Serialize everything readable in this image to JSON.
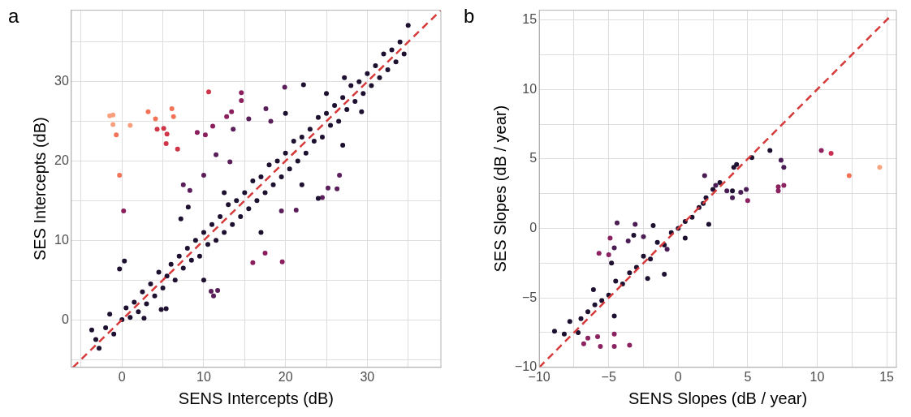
{
  "chart_data": [
    {
      "type": "scatter",
      "title": "a",
      "xlabel": "SENS Intercepts (dB)",
      "ylabel": "SES Intercepts (dB)",
      "xlim": [
        -6.2,
        39
      ],
      "ylim": [
        -6,
        39
      ],
      "xticks": [
        {
          "value": -5,
          "label": null
        },
        0,
        {
          "value": 5,
          "label": null
        },
        10,
        {
          "value": 15,
          "label": null
        },
        20,
        {
          "value": 25,
          "label": null
        },
        30,
        {
          "value": 35,
          "label": null
        }
      ],
      "yticks": [
        {
          "value": -5,
          "label": null
        },
        0,
        {
          "value": 5,
          "label": null
        },
        10,
        {
          "value": 15,
          "label": null
        },
        20,
        {
          "value": 25,
          "label": null
        },
        30,
        {
          "value": 35,
          "label": null
        }
      ],
      "grid": true,
      "marker": "circle",
      "series": [
        {
          "type": "line",
          "line_style": "dashed",
          "marker": "none",
          "color": "#d63a3a",
          "x": [
            -6,
            39
          ],
          "values": [
            -6,
            39
          ]
        },
        {
          "color": "#1e1030",
          "x": [
            -3.7,
            -3.2,
            -2.8,
            -2,
            -1.5,
            -1,
            0,
            0.5,
            1,
            1.5,
            2,
            2.5,
            3,
            3.5,
            4,
            4.5,
            5,
            5.5,
            6,
            6.5,
            7,
            7.5,
            8,
            8.5,
            9,
            9.5,
            10,
            10.5,
            11,
            11.5,
            12,
            12.5,
            13,
            13.5,
            14,
            14.5,
            15,
            15.5,
            16,
            16.5,
            17,
            17.5,
            18,
            18.5,
            19,
            19.5,
            20,
            20.5,
            21,
            21.5,
            22,
            22.5,
            23,
            23.5,
            24,
            24.5,
            25,
            25.5,
            26,
            26.5,
            27,
            27.5,
            28,
            28.5,
            29,
            29.5,
            30,
            30.5,
            31,
            31.5,
            32,
            32.5,
            33,
            33.5,
            34,
            34.5,
            35,
            -0.3,
            0.3,
            4.8,
            5.4,
            2.7,
            25,
            27.2,
            22.2,
            29.3,
            27,
            22,
            10,
            7.2,
            8.1,
            17,
            20,
            12.5,
            24
          ],
          "values": [
            -1.3,
            -2.5,
            -3.6,
            -1,
            0.7,
            -1.8,
            0,
            1.5,
            0.3,
            2.2,
            1,
            3.5,
            2,
            4.5,
            3,
            6,
            4,
            5.5,
            7,
            5,
            8,
            6.5,
            9,
            7.5,
            10,
            8,
            11,
            9.5,
            12,
            10,
            13,
            11,
            14.5,
            12,
            15,
            13,
            16,
            14,
            17.5,
            15,
            18,
            16,
            19.5,
            17,
            20,
            18,
            21,
            19,
            22.5,
            20,
            23,
            21,
            24,
            22.5,
            25.5,
            23,
            26,
            24.5,
            27,
            25,
            28,
            26.5,
            29.5,
            27.5,
            30,
            28.5,
            31,
            29.5,
            32,
            30.5,
            33.5,
            31.5,
            34,
            32.5,
            35,
            33.5,
            37.1,
            6.4,
            7.4,
            1.3,
            1.4,
            0.2,
            28.5,
            30.5,
            29.6,
            26.2,
            22,
            17,
            5,
            12.7,
            14.2,
            11,
            26,
            16,
            15.3
          ]
        },
        {
          "color": "#5a1f5a",
          "x": [
            11.2,
            10.9,
            11.7,
            19.5,
            21.3,
            24.5,
            26.3,
            26.6,
            25.2,
            18.2,
            15.5,
            11.5,
            13.6,
            13.2,
            8.3,
            7.5,
            10,
            17.6,
            19.9
          ],
          "values": [
            3,
            3.6,
            3.7,
            13.7,
            13.8,
            15.4,
            16.5,
            18.2,
            16.6,
            25,
            25.3,
            20.8,
            24,
            19.9,
            16.3,
            17,
            18.2,
            26.6,
            29.3
          ]
        },
        {
          "color": "#8b1f5e",
          "x": [
            16,
            17.5,
            19.6,
            14.6,
            14.6,
            13.4,
            12.8,
            9.2,
            10.2,
            11.1,
            0.2
          ],
          "values": [
            7.2,
            8.4,
            7.3,
            27.6,
            28.6,
            26.2,
            25.6,
            23.6,
            23.3,
            24.4,
            13.7
          ]
        },
        {
          "color": "#d0364a",
          "x": [
            10.6,
            5.1,
            4.3,
            5.5,
            5.4,
            6.8
          ],
          "values": [
            28.7,
            24.1,
            24,
            23.4,
            22.2,
            21.5
          ]
        },
        {
          "color": "#f27358",
          "x": [
            3.2,
            4.1,
            -0.7,
            6.3,
            6.1,
            -0.3
          ],
          "values": [
            26.2,
            25.3,
            23.3,
            25.6,
            26.6,
            18.2
          ]
        },
        {
          "color": "#f8a07d",
          "x": [
            -1.5,
            -1.1,
            -1.1,
            1
          ],
          "values": [
            25.7,
            25.8,
            24.6,
            24.5
          ]
        }
      ]
    },
    {
      "type": "scatter",
      "title": "b",
      "xlabel": "SENS Slopes (dB / year)",
      "ylabel": "SES Slopes (dB / year)",
      "xlim": [
        -10,
        15.7
      ],
      "ylim": [
        -10,
        15.7
      ],
      "xticks": [
        {
          "value": -10,
          "label": "−10"
        },
        {
          "value": -7.5,
          "label": null
        },
        {
          "value": -5,
          "label": "−5"
        },
        {
          "value": -2.5,
          "label": null
        },
        0,
        {
          "value": 2.5,
          "label": null
        },
        5,
        {
          "value": 7.5,
          "label": null
        },
        10,
        {
          "value": 12.5,
          "label": null
        },
        15
      ],
      "yticks": [
        {
          "value": -10,
          "label": "−10"
        },
        {
          "value": -7.5,
          "label": null
        },
        {
          "value": -5,
          "label": "−5"
        },
        {
          "value": -2.5,
          "label": null
        },
        0,
        {
          "value": 2.5,
          "label": null
        },
        5,
        {
          "value": 7.5,
          "label": null
        },
        10,
        {
          "value": 12.5,
          "label": null
        },
        15
      ],
      "grid": true,
      "marker": "circle",
      "series": [
        {
          "type": "line",
          "line_style": "dashed",
          "marker": "none",
          "color": "#d63a3a",
          "x": [
            -10,
            15.2
          ],
          "values": [
            -10,
            15.2
          ]
        },
        {
          "color": "#1e1030",
          "x": [
            -8.9,
            -8.2,
            -7.8,
            -7.2,
            -7,
            -6.5,
            -6,
            -5.5,
            -5,
            -4.5,
            -4,
            -3.5,
            -3,
            -2.5,
            -2,
            -1.5,
            -1,
            -0.5,
            0,
            0.5,
            1,
            1.5,
            2,
            2.5,
            3,
            4,
            4.2,
            5.3,
            6.6,
            -2.2,
            -1,
            -4.8,
            -3.2,
            -1.8,
            0.5,
            1.8,
            2.2,
            3.9,
            -6.1,
            -4.6
          ],
          "values": [
            -7.4,
            -7.6,
            -6.7,
            -7.5,
            -6.5,
            -6,
            -5.5,
            -5.2,
            -4.8,
            -3.8,
            -4,
            -3.2,
            -2.8,
            -2,
            -2.2,
            -1,
            -1.2,
            -0.3,
            0,
            0.5,
            0.8,
            1.5,
            2.2,
            2.8,
            3.3,
            4.4,
            4.6,
            5.1,
            5.6,
            -3.6,
            -3.3,
            -2.5,
            -0.5,
            0.2,
            -0.7,
            1.8,
            0.3,
            2.7,
            -4.4,
            -6.3
          ]
        },
        {
          "color": "#4a1d55",
          "x": [
            -3.1,
            -4.4,
            -2.5,
            -3.6,
            -4.6,
            2.7,
            3.5,
            4.5,
            4.9,
            3.9,
            7.4,
            7.6,
            1.9,
            -0.8
          ],
          "values": [
            0.3,
            0.4,
            -0.6,
            -0.9,
            -1.4,
            3.1,
            2.7,
            2.6,
            2.8,
            2.2,
            4.9,
            4.4,
            3.8,
            -1.5
          ]
        },
        {
          "color": "#8b2361",
          "x": [
            -5.7,
            -5,
            -4.9,
            -5.8,
            -5.6,
            -4.6,
            -4.6,
            -3.5,
            -6.8,
            -6.5,
            10.3,
            7.2,
            7.2,
            7.6,
            5
          ],
          "values": [
            -1.8,
            -1.9,
            -0.7,
            -7.8,
            -8.5,
            -7.6,
            -8.5,
            -8.4,
            -8.3,
            -7.9,
            5.6,
            3,
            2.7,
            3.1,
            2
          ]
        },
        {
          "color": "#cc2d55",
          "x": [
            11
          ],
          "values": [
            5.4
          ]
        },
        {
          "color": "#f47256",
          "x": [
            12.3
          ],
          "values": [
            3.8
          ]
        },
        {
          "color": "#f8a47e",
          "x": [
            14.5
          ],
          "values": [
            4.4
          ]
        }
      ]
    }
  ]
}
